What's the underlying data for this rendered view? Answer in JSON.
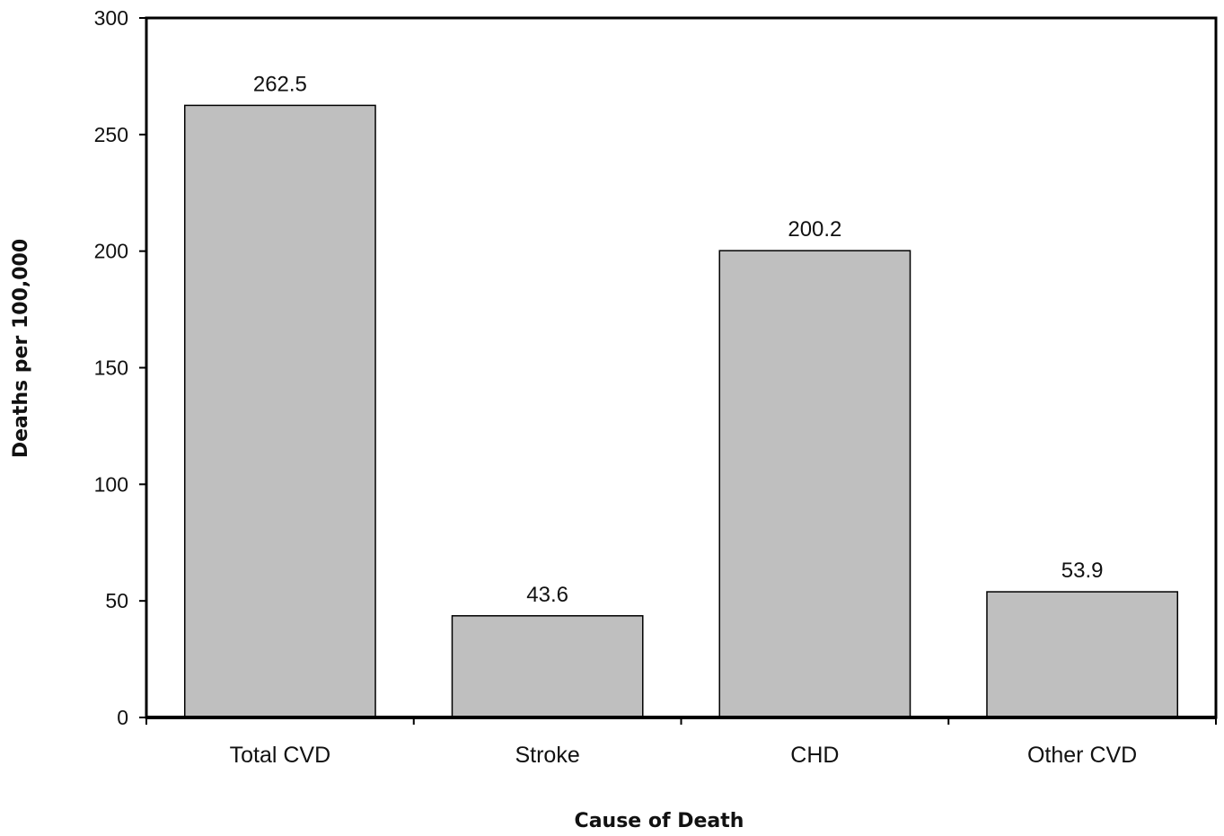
{
  "chart_data": {
    "type": "bar",
    "title": "",
    "xlabel": "Cause of Death",
    "ylabel": "Deaths per 100,000",
    "categories": [
      "Total CVD",
      "Stroke",
      "CHD",
      "Other CVD"
    ],
    "values": [
      262.5,
      43.6,
      200.2,
      53.9
    ],
    "value_labels": [
      "262.5",
      "43.6",
      "200.2",
      "53.9"
    ],
    "ylim": [
      0,
      300
    ],
    "yticks": [
      0,
      50,
      100,
      150,
      200,
      250,
      300
    ],
    "grid": false,
    "legend": "none",
    "bar_color": "#bfbfbf",
    "bar_edge_color": "#000000"
  }
}
